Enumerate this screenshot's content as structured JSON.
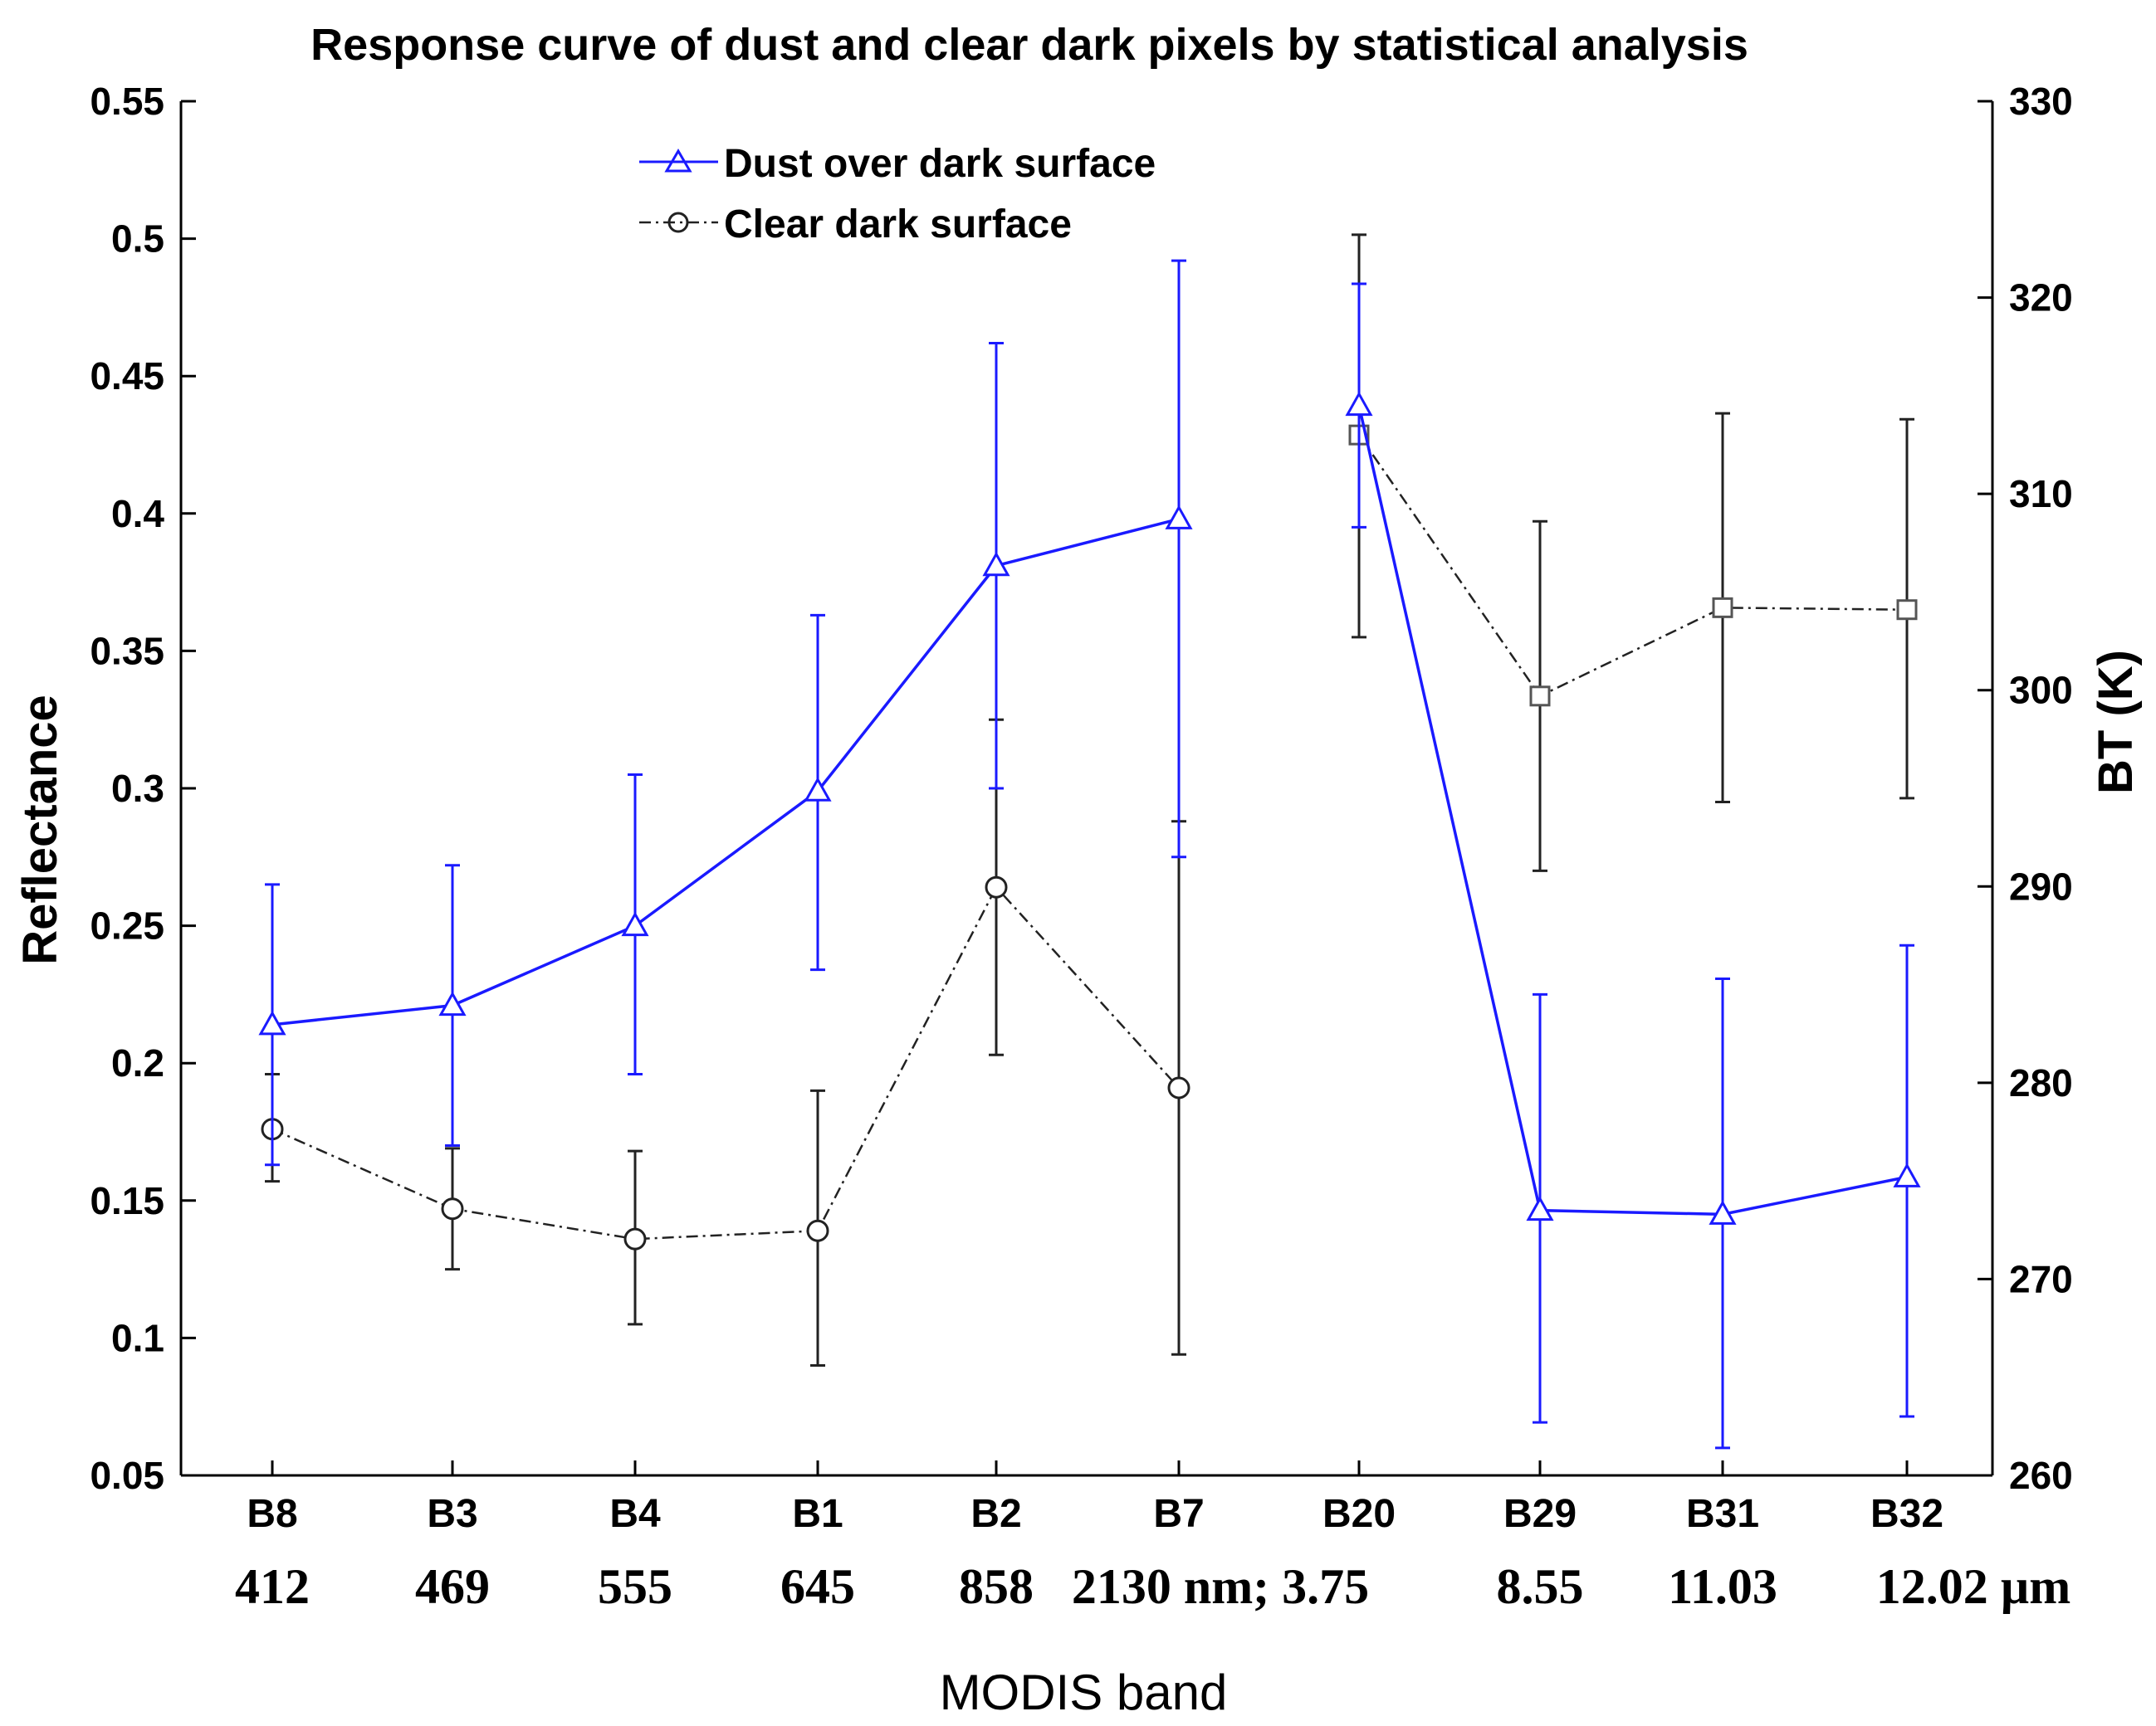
{
  "chart_data": {
    "type": "line",
    "title": "Response curve of dust and clear dark pixels by statistical analysis",
    "xlabel": "MODIS band",
    "ylabel": "Reflectance",
    "y2label": "BT (K)",
    "categories": [
      "B8",
      "B3",
      "B4",
      "B1",
      "B2",
      "B7",
      "B20",
      "B29",
      "B31",
      "B32"
    ],
    "wavelengths": [
      "412",
      "469",
      "555",
      "645",
      "858",
      "2130 nm; 3.75",
      "8.55",
      "11.03",
      "12.02 µm"
    ],
    "ylim": [
      0.05,
      0.55
    ],
    "yticks": [
      "0.05",
      "0.1",
      "0.15",
      "0.2",
      "0.25",
      "0.3",
      "0.35",
      "0.4",
      "0.45",
      "0.5",
      "0.55"
    ],
    "y2lim": [
      260,
      330
    ],
    "y2ticks": [
      "260",
      "270",
      "280",
      "290",
      "300",
      "310",
      "320",
      "330"
    ],
    "series": [
      {
        "name": "Dust over dark surface",
        "color": "#1a1aff",
        "marker": "triangle",
        "line": "solid",
        "reflectance": {
          "categories": [
            "B8",
            "B3",
            "B4",
            "B1",
            "B2",
            "B7"
          ],
          "values": [
            0.214,
            0.221,
            0.25,
            0.299,
            0.381,
            0.398
          ],
          "err_low": [
            0.163,
            0.17,
            0.196,
            0.234,
            0.3,
            0.275
          ],
          "err_high": [
            0.265,
            0.272,
            0.305,
            0.363,
            0.462,
            0.492
          ]
        },
        "bt": {
          "categories": [
            "B20",
            "B29",
            "B31",
            "B32"
          ],
          "values": [
            314.5,
            273.5,
            273.3,
            275.2
          ],
          "err_low": [
            308.3,
            262.7,
            261.4,
            263.0
          ],
          "err_high": [
            320.7,
            284.5,
            285.3,
            287.0
          ]
        }
      },
      {
        "name": "Clear dark surface",
        "color": "#222222",
        "marker": "circle",
        "line": "dash-dot",
        "reflectance": {
          "categories": [
            "B8",
            "B3",
            "B4",
            "B1",
            "B2",
            "B7"
          ],
          "values": [
            0.176,
            0.147,
            0.136,
            0.139,
            0.264,
            0.191
          ],
          "err_low": [
            0.157,
            0.125,
            0.105,
            0.09,
            0.203,
            0.094
          ],
          "err_high": [
            0.196,
            0.169,
            0.168,
            0.19,
            0.325,
            0.288
          ]
        },
        "bt": {
          "categories": [
            "B20",
            "B29",
            "B31",
            "B32"
          ],
          "values": [
            313.0,
            299.7,
            304.2,
            304.1
          ],
          "err_low": [
            302.7,
            290.8,
            294.3,
            294.5
          ],
          "err_high": [
            323.2,
            308.6,
            314.1,
            313.8
          ]
        }
      }
    ],
    "legend": {
      "position": "top-center",
      "entries": [
        "Dust over dark surface",
        "Clear dark surface"
      ]
    }
  }
}
